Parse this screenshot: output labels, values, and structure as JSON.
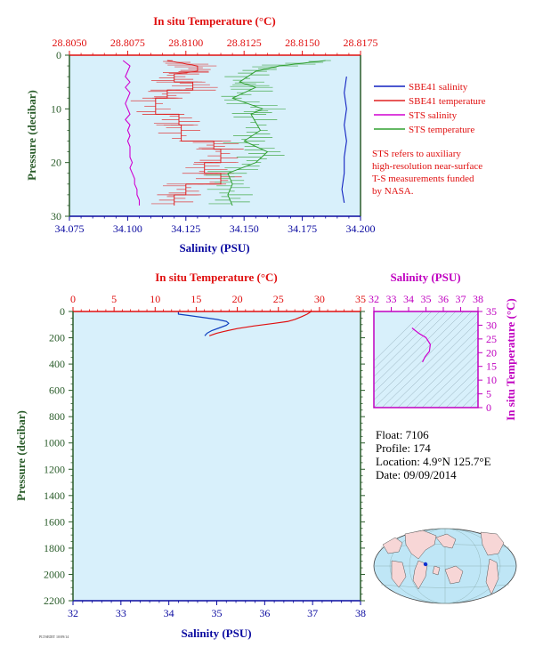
{
  "chart_data": [
    {
      "id": "top",
      "type": "line",
      "top_axis": {
        "label": "In situ Temperature (°C)",
        "ticks": [
          "28.8050",
          "28.8075",
          "28.8100",
          "28.8125",
          "28.8150",
          "28.8175"
        ],
        "range": [
          28.805,
          28.8175
        ],
        "color": "#e01010"
      },
      "x_axis": {
        "label": "Salinity (PSU)",
        "ticks": [
          "34.075",
          "34.100",
          "34.125",
          "34.150",
          "34.175",
          "34.200"
        ],
        "range": [
          34.075,
          34.2
        ],
        "color": "#0a0aa0"
      },
      "y_axis": {
        "label": "Pressure (decibar)",
        "ticks": [
          "0",
          "10",
          "20",
          "30"
        ],
        "range": [
          0,
          30
        ],
        "color": "#2a5c2a",
        "inverted": true
      },
      "legend": {
        "placement": "right",
        "items": [
          {
            "label": "SBE41 salinity",
            "color": "#1020c0"
          },
          {
            "label": "SBE41 temperature",
            "color": "#e02020"
          },
          {
            "label": "STS salinity",
            "color": "#d000d0"
          },
          {
            "label": "STS temperature",
            "color": "#30a030"
          }
        ],
        "note": [
          "STS refers to auxiliary",
          "high-resolution near-surface",
          "T-S measurements funded",
          "by NASA."
        ]
      },
      "series": [
        {
          "name": "SBE41 salinity",
          "color": "#1020c0",
          "axis": "bottom",
          "points": [
            [
              34.194,
              4
            ],
            [
              34.193,
              7
            ],
            [
              34.194,
              10
            ],
            [
              34.193,
              13
            ],
            [
              34.194,
              16
            ],
            [
              34.193,
              19
            ],
            [
              34.193,
              22
            ],
            [
              34.192,
              25
            ],
            [
              34.193,
              27.5
            ]
          ]
        },
        {
          "name": "STS salinity",
          "color": "#d000d0",
          "axis": "bottom",
          "points": [
            [
              34.098,
              1
            ],
            [
              34.101,
              2
            ],
            [
              34.1,
              3
            ],
            [
              34.099,
              4
            ],
            [
              34.101,
              5
            ],
            [
              34.099,
              6
            ],
            [
              34.101,
              7
            ],
            [
              34.1,
              8
            ],
            [
              34.099,
              9
            ],
            [
              34.1,
              10
            ],
            [
              34.101,
              11
            ],
            [
              34.099,
              12
            ],
            [
              34.101,
              13
            ],
            [
              34.1,
              14
            ],
            [
              34.101,
              15
            ],
            [
              34.1,
              16
            ],
            [
              34.101,
              17
            ],
            [
              34.101,
              18
            ],
            [
              34.101,
              19
            ],
            [
              34.102,
              20
            ],
            [
              34.101,
              21
            ],
            [
              34.102,
              22
            ],
            [
              34.103,
              23
            ],
            [
              34.103,
              24
            ],
            [
              34.104,
              25
            ],
            [
              34.104,
              26
            ],
            [
              34.105,
              27
            ],
            [
              34.105,
              28
            ]
          ]
        },
        {
          "name": "SBE41 temperature",
          "color": "#e02020",
          "axis": "top",
          "points": [
            [
              28.8092,
              1
            ],
            [
              28.8105,
              2
            ],
            [
              28.8105,
              3
            ],
            [
              28.8095,
              3.5
            ],
            [
              28.8095,
              5
            ],
            [
              28.8103,
              5
            ],
            [
              28.8103,
              6.5
            ],
            [
              28.8092,
              6.5
            ],
            [
              28.8092,
              8
            ],
            [
              28.8087,
              8
            ],
            [
              28.8087,
              11
            ],
            [
              28.8097,
              11
            ],
            [
              28.8097,
              13
            ],
            [
              28.8098,
              13
            ],
            [
              28.8098,
              16
            ],
            [
              28.8112,
              16
            ],
            [
              28.8112,
              17.5
            ],
            [
              28.8115,
              17.5
            ],
            [
              28.8115,
              20
            ],
            [
              28.8108,
              20
            ],
            [
              28.8108,
              22
            ],
            [
              28.8115,
              22
            ],
            [
              28.8115,
              24
            ],
            [
              28.81,
              24
            ],
            [
              28.81,
              26
            ],
            [
              28.8095,
              26
            ],
            [
              28.8095,
              28
            ]
          ]
        },
        {
          "name": "STS temperature",
          "color": "#30a030",
          "axis": "top",
          "points": [
            [
              28.816,
              1
            ],
            [
              28.814,
              2
            ],
            [
              28.813,
              3
            ],
            [
              28.8123,
              5
            ],
            [
              28.813,
              6
            ],
            [
              28.812,
              8
            ],
            [
              28.8133,
              10
            ],
            [
              28.8128,
              11
            ],
            [
              28.8132,
              14
            ],
            [
              28.8125,
              16
            ],
            [
              28.8135,
              18
            ],
            [
              28.813,
              20
            ],
            [
              28.8118,
              22
            ],
            [
              28.812,
              24
            ],
            [
              28.8118,
              26
            ],
            [
              28.812,
              28
            ]
          ]
        }
      ]
    },
    {
      "id": "bottom",
      "type": "line",
      "top_axis": {
        "label": "In situ Temperature (°C)",
        "ticks": [
          "0",
          "5",
          "10",
          "15",
          "20",
          "25",
          "30",
          "35"
        ],
        "range": [
          0,
          35
        ],
        "color": "#e01010"
      },
      "x_axis": {
        "label": "Salinity (PSU)",
        "ticks": [
          "32",
          "33",
          "34",
          "35",
          "36",
          "37",
          "38"
        ],
        "range": [
          32,
          38
        ],
        "color": "#0a0aa0"
      },
      "y_axis": {
        "label": "Pressure (decibar)",
        "ticks": [
          "0",
          "200",
          "400",
          "600",
          "800",
          "1000",
          "1200",
          "1400",
          "1600",
          "1800",
          "2000",
          "2200"
        ],
        "range": [
          0,
          2200
        ],
        "color": "#2a5c2a",
        "inverted": true
      },
      "series": [
        {
          "name": "Salinity",
          "color": "#1040c0",
          "axis": "bottom",
          "points": [
            [
              34.2,
              0
            ],
            [
              34.2,
              20
            ],
            [
              34.4,
              30
            ],
            [
              34.7,
              45
            ],
            [
              35.0,
              60
            ],
            [
              35.2,
              75
            ],
            [
              35.25,
              90
            ],
            [
              35.2,
              105
            ],
            [
              35.05,
              125
            ],
            [
              34.9,
              145
            ],
            [
              34.8,
              165
            ],
            [
              34.75,
              185
            ]
          ]
        },
        {
          "name": "Temperature",
          "color": "#e01010",
          "axis": "top",
          "points": [
            [
              29.0,
              0
            ],
            [
              28.5,
              20
            ],
            [
              27.8,
              40
            ],
            [
              27.0,
              60
            ],
            [
              26.2,
              75
            ],
            [
              24.5,
              90
            ],
            [
              22.0,
              110
            ],
            [
              20.0,
              130
            ],
            [
              18.5,
              150
            ],
            [
              17.5,
              165
            ],
            [
              16.6,
              185
            ]
          ]
        }
      ]
    },
    {
      "id": "ts",
      "type": "line",
      "top_axis": {
        "label": "Salinity (PSU)",
        "ticks": [
          "32",
          "33",
          "34",
          "35",
          "36",
          "37",
          "38"
        ],
        "range": [
          32,
          38
        ],
        "color": "#c000c0"
      },
      "y_axis": {
        "label": "In situ Temperature (°C)",
        "ticks": [
          "0",
          "5",
          "10",
          "15",
          "20",
          "25",
          "30",
          "35"
        ],
        "range": [
          0,
          35
        ],
        "color": "#c000c0"
      },
      "series": [
        {
          "name": "T-S",
          "color": "#d000d0",
          "points": [
            [
              34.2,
              29.0
            ],
            [
              34.3,
              28.5
            ],
            [
              34.6,
              27.0
            ],
            [
              35.0,
              25.5
            ],
            [
              35.25,
              23.0
            ],
            [
              35.2,
              20.5
            ],
            [
              34.95,
              18.5
            ],
            [
              34.8,
              16.6
            ]
          ]
        }
      ]
    }
  ],
  "float_info": {
    "float": "Float:  7106",
    "profile": "Profile:  174",
    "location": "Location:  4.9°N  125.7°E",
    "date": "Date:  09/09/2014"
  },
  "footer_code": "PLTSEDIT 10/09/14"
}
